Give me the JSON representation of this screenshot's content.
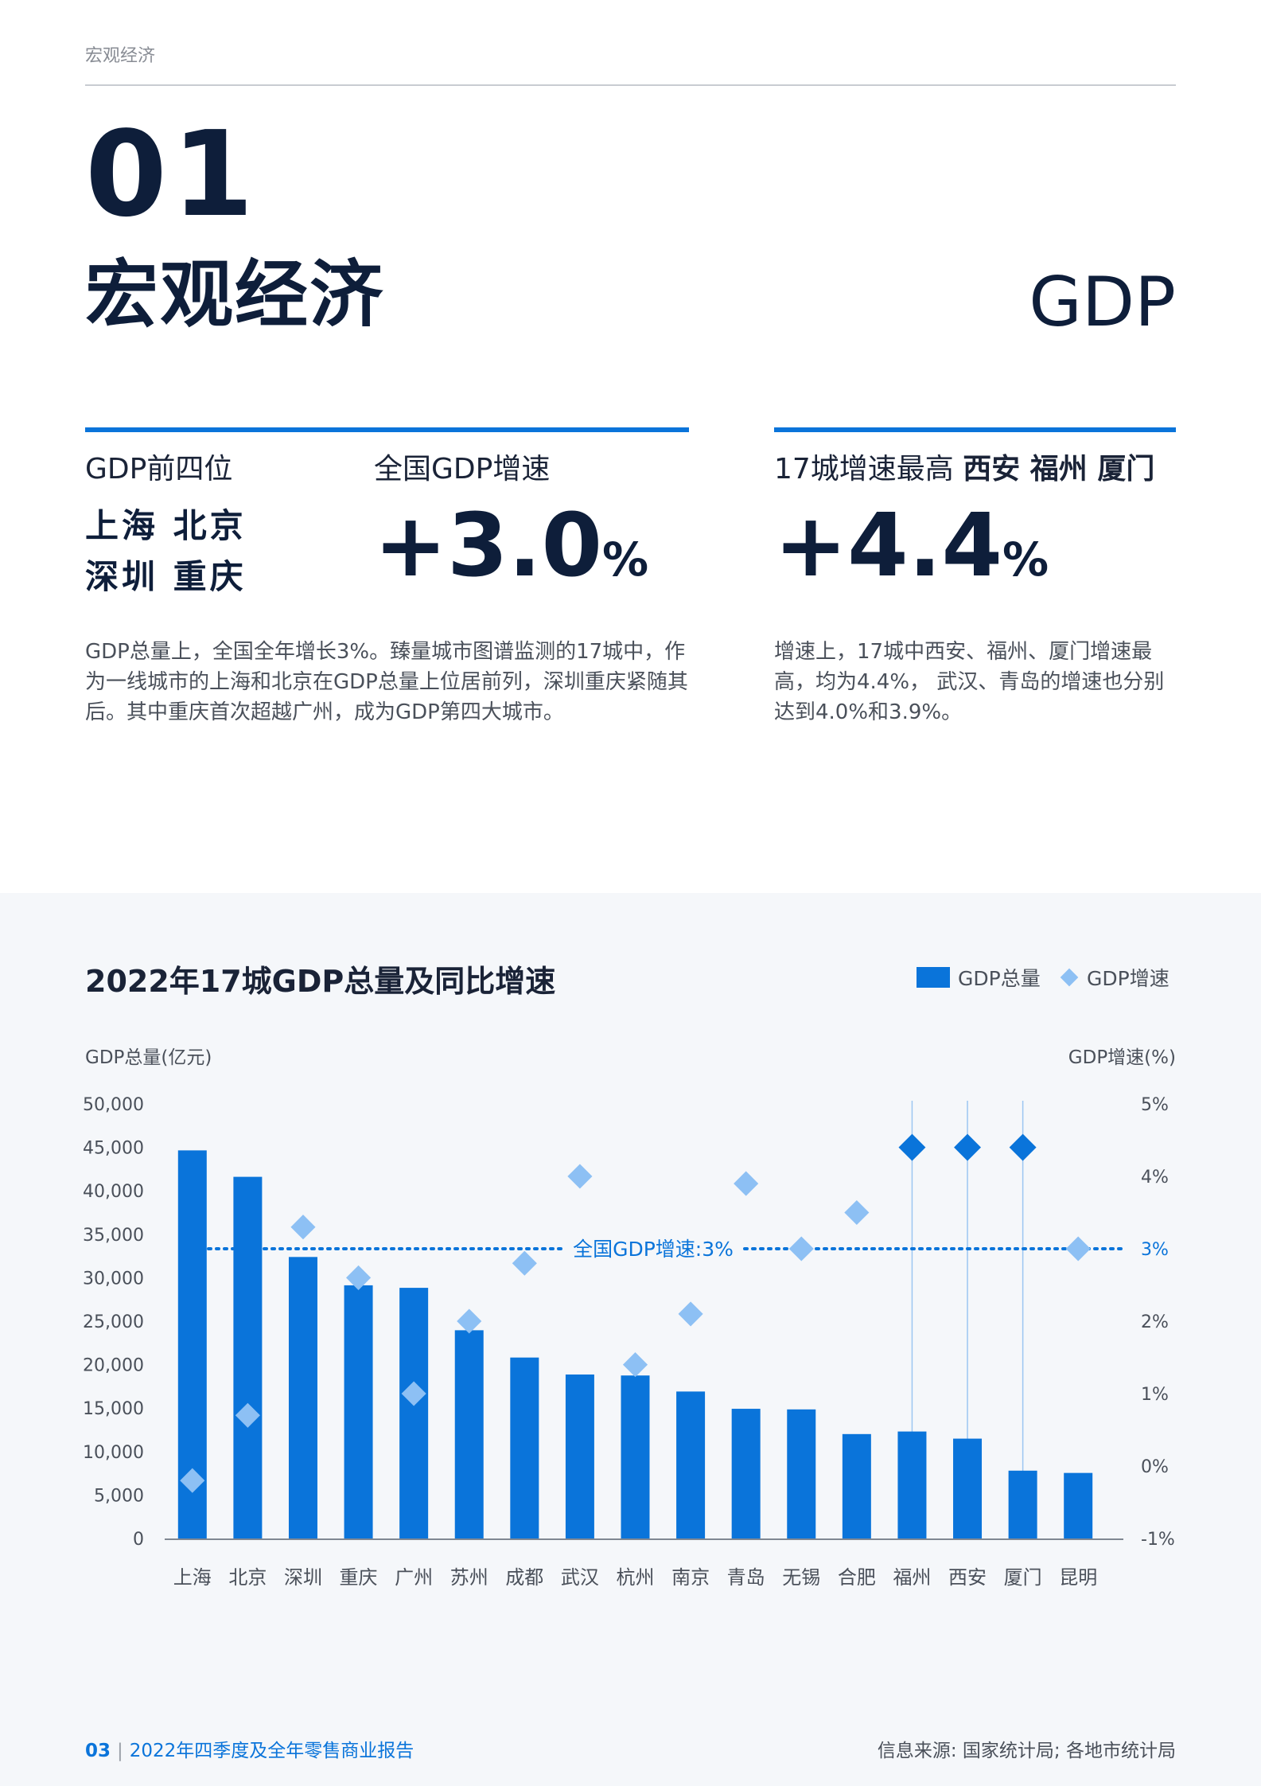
{
  "header": {
    "running_title": "宏观经济"
  },
  "section": {
    "number": "01",
    "title": "宏观经济",
    "topic": "GDP"
  },
  "stats": {
    "top4": {
      "label": "GDP前四位",
      "cities_line1": "上海 北京",
      "cities_line2": "深圳 重庆"
    },
    "national_growth": {
      "label": "全国GDP增速",
      "value": "+3.0",
      "unit": "%"
    },
    "city_growth": {
      "label_prefix": "17城增速最高",
      "label_cities": "西安 福州 厦门",
      "value": "+4.4",
      "unit": "%"
    }
  },
  "paragraphs": {
    "left": "GDP总量上，全国全年增长3%。臻量城市图谱监测的17城中，作为一线城市的上海和北京在GDP总量上位居前列，深圳重庆紧随其后。其中重庆首次超越广州，成为GDP第四大城市。",
    "right": "增速上，17城中西安、福州、厦门增速最高，均为4.4%， 武汉、青岛的增速也分别达到4.0%和3.9%。"
  },
  "chart_data": {
    "type": "bar",
    "title": "2022年17城GDP总量及同比增速",
    "legend": {
      "bar": "GDP总量",
      "diamond": "GDP增速"
    },
    "ylabel_left": "GDP总量(亿元)",
    "ylabel_right": "GDP增速(%)",
    "ylim_left": [
      0,
      50000
    ],
    "ylim_right": [
      -1,
      5
    ],
    "yticks_left": [
      "50,000",
      "45,000",
      "40,000",
      "35,000",
      "30,000",
      "25,000",
      "20,000",
      "15,000",
      "10,000",
      "5,000",
      "0"
    ],
    "yticks_right": [
      "5%",
      "4%",
      "3%",
      "2%",
      "1%",
      "0%",
      "-1%"
    ],
    "categories": [
      "上海",
      "北京",
      "深圳",
      "重庆",
      "广州",
      "苏州",
      "成都",
      "武汉",
      "杭州",
      "南京",
      "青岛",
      "无锡",
      "合肥",
      "福州",
      "西安",
      "厦门",
      "昆明"
    ],
    "series": [
      {
        "name": "GDP总量",
        "values": [
          44653,
          41611,
          32388,
          29129,
          28839,
          23958,
          20818,
          18866,
          18753,
          16908,
          14921,
          14851,
          12013,
          12308,
          11487,
          7803,
          7541
        ]
      },
      {
        "name": "GDP增速",
        "values": [
          -0.2,
          0.7,
          3.3,
          2.6,
          1.0,
          2.0,
          2.8,
          4.0,
          1.4,
          2.1,
          3.9,
          3.0,
          3.5,
          4.4,
          4.4,
          4.4,
          3.0
        ]
      }
    ],
    "reference_line": {
      "value": 3,
      "label": "全国GDP增速:3%"
    },
    "highlight_categories": [
      "福州",
      "西安",
      "厦门"
    ],
    "grid": false,
    "legend_position": "top-right"
  },
  "footer": {
    "page_number": "03",
    "report_title": "2022年四季度及全年零售商业报告",
    "source": "信息来源: 国家统计局; 各地市统计局"
  },
  "colors": {
    "primary_blue": "#0a74da",
    "light_blue": "#8dc0f4",
    "navy": "#0e1e3a",
    "panel_bg": "#f5f7fa"
  }
}
